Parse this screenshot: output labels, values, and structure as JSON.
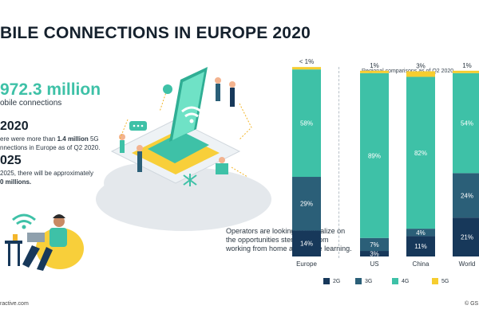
{
  "title": "BILE CONNECTIONS IN EUROPE 2020",
  "stat": {
    "value": "972.3 million",
    "label": "obile connections"
  },
  "y2020": {
    "year": "2020",
    "text_a": "ere were more than ",
    "bold": "1.4 million",
    "text_b": " 5G",
    "text_c": "nnections in Europe as of Q2 2020."
  },
  "y2025": {
    "year": "025",
    "line1": "2025, there will be approximately",
    "bold": "0 millions."
  },
  "operators": "Operators are looking to capitalize on the opportunities stemming from working from home and online learning.",
  "footer_left": "ractive.com",
  "footer_right": "© GS",
  "region_title": "Regional comparisons as of Q2 2020",
  "colors": {
    "2G": "#17385a",
    "3G": "#2b5f78",
    "4G": "#3ec1a7",
    "5G": "#f6cd2f"
  },
  "chart_data": {
    "type": "bar",
    "stacked": true,
    "categories": [
      "Europe",
      "US",
      "China",
      "World"
    ],
    "series": [
      {
        "name": "2G",
        "values": [
          14,
          3,
          11,
          21
        ]
      },
      {
        "name": "3G",
        "values": [
          29,
          7,
          4,
          24
        ]
      },
      {
        "name": "4G",
        "values": [
          58,
          89,
          82,
          54
        ]
      },
      {
        "name": "5G",
        "values": [
          0.5,
          1,
          3,
          1
        ]
      }
    ],
    "labels": [
      [
        "14%",
        "29%",
        "58%",
        "< 1%"
      ],
      [
        "3%",
        "7%",
        "89%",
        "1%"
      ],
      [
        "11%",
        "4%",
        "82%",
        "3%"
      ],
      [
        "21%",
        "24%",
        "54%",
        "1%"
      ]
    ],
    "legend": [
      "2G",
      "3G",
      "4G",
      "5G"
    ],
    "legend_position": "bottom"
  }
}
